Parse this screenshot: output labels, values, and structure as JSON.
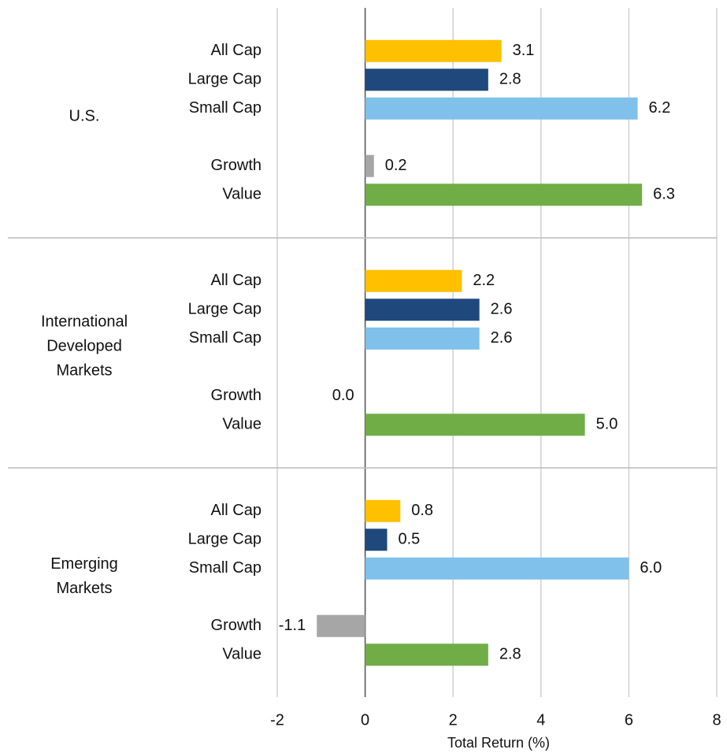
{
  "chart_data": {
    "type": "grouped-hbar",
    "x_label": "Total Return (%)",
    "xlim": [
      -2,
      8
    ],
    "xticks": [
      -2,
      0,
      2,
      4,
      6,
      8
    ],
    "grid": true,
    "colors": [
      "#ffc000",
      "#1f497d",
      "#7fc1eb",
      "#a6a6a6",
      "#70ad47"
    ],
    "groups": [
      {
        "label": [
          "U.S."
        ],
        "categories": [
          "All Cap",
          "Large Cap",
          "Small Cap",
          "Growth",
          "Value"
        ],
        "values": [
          3.1,
          2.8,
          6.2,
          0.2,
          6.3
        ],
        "value_labels": [
          "3.1",
          "2.8",
          "6.2",
          "0.2",
          "6.3"
        ]
      },
      {
        "label": [
          "International",
          "Developed",
          "Markets"
        ],
        "categories": [
          "All Cap",
          "Large Cap",
          "Small Cap",
          "Growth",
          "Value"
        ],
        "values": [
          2.2,
          2.6,
          2.6,
          0.0,
          5.0
        ],
        "value_labels": [
          "2.2",
          "2.6",
          "2.6",
          "0.0",
          "5.0"
        ]
      },
      {
        "label": [
          "Emerging",
          "Markets"
        ],
        "categories": [
          "All Cap",
          "Large Cap",
          "Small Cap",
          "Growth",
          "Value"
        ],
        "values": [
          0.8,
          0.5,
          6.0,
          -1.1,
          2.8
        ],
        "value_labels": [
          "0.8",
          "0.5",
          "6.0",
          "-1.1",
          "2.8"
        ]
      }
    ]
  }
}
